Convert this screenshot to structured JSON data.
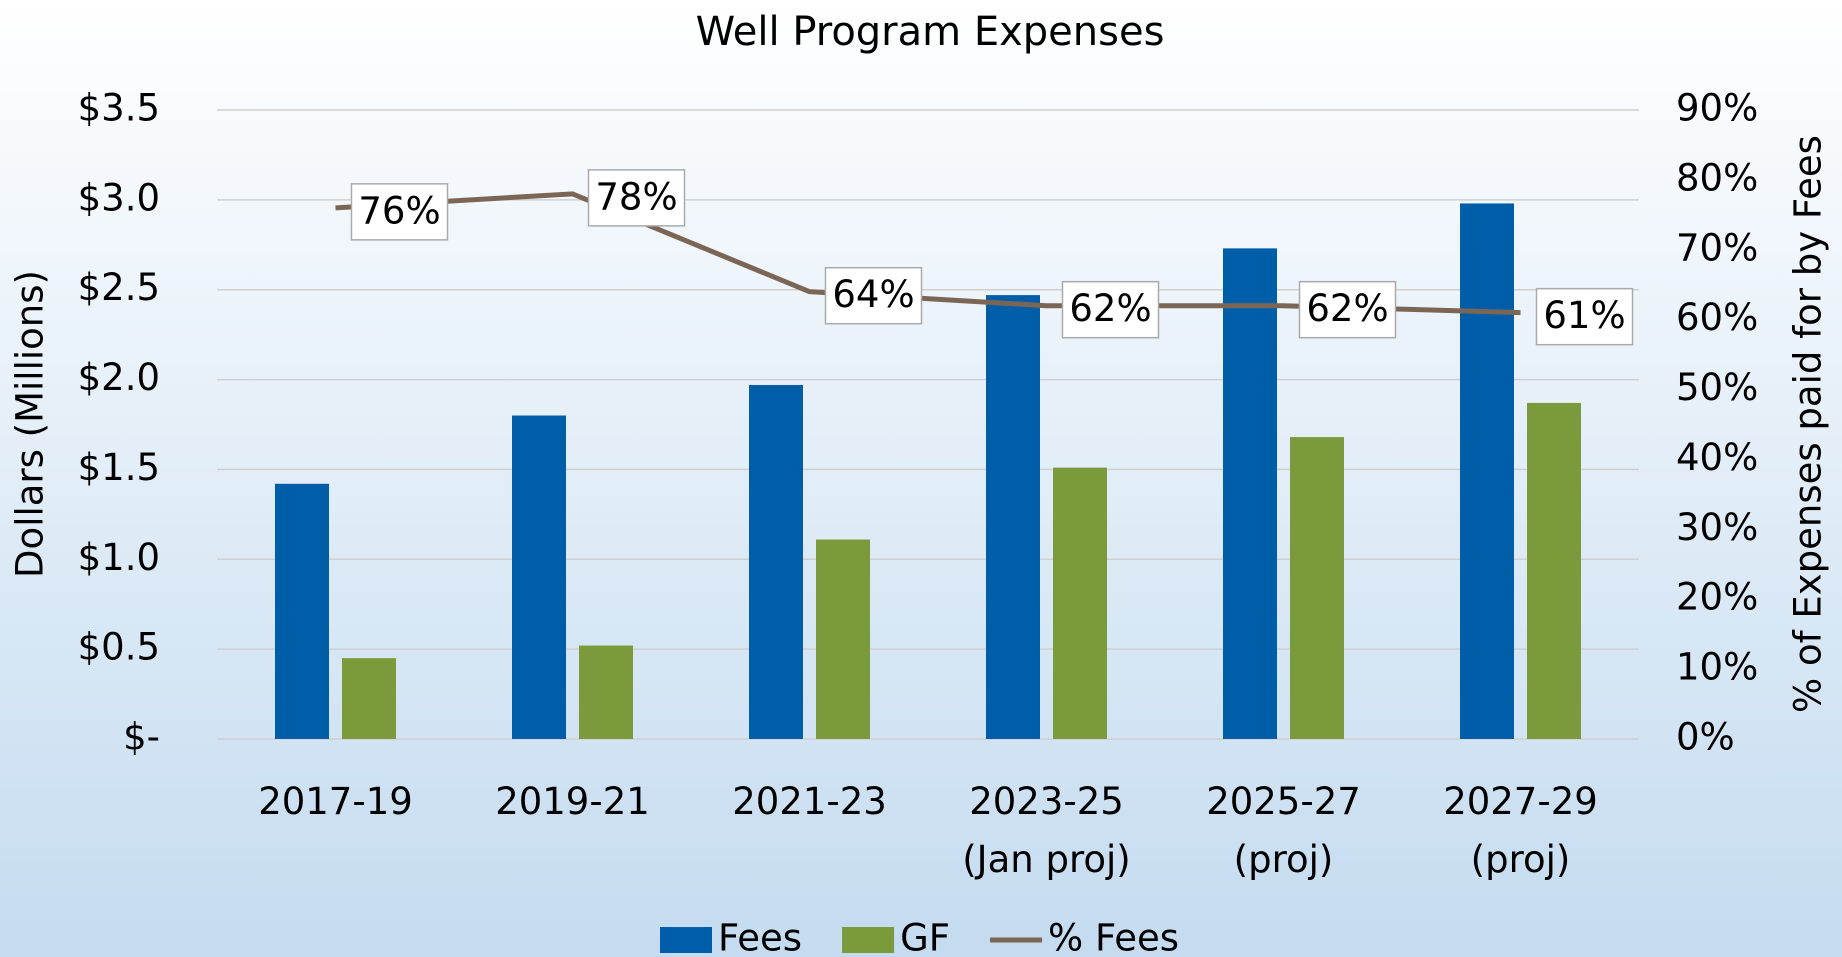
{
  "chart_data": {
    "type": "bar",
    "title": "Well Program Expenses",
    "y_label": "Dollars (Millions)",
    "y2_label": "% of Expenses paid for by Fees",
    "categories": [
      "2017-19",
      "2019-21",
      "2021-23",
      "2023-25\n(Jan proj)",
      "2025-27\n(proj)",
      "2027-29\n(proj)"
    ],
    "series": [
      {
        "name": "Fees",
        "type": "bar",
        "color": "#005ea8",
        "values": [
          1.42,
          1.8,
          1.97,
          2.47,
          2.73,
          2.98
        ]
      },
      {
        "name": "GF",
        "type": "bar",
        "color": "#7a9a3c",
        "values": [
          0.45,
          0.52,
          1.11,
          1.51,
          1.68,
          1.87
        ]
      },
      {
        "name": "% Fees",
        "type": "line",
        "axis": "y2",
        "color": "#7b6656",
        "values": [
          76,
          78,
          64,
          62,
          62,
          61
        ],
        "value_labels": [
          "76%",
          "78%",
          "64%",
          "62%",
          "62%",
          "61%"
        ]
      }
    ],
    "ylim": [
      0,
      3.5
    ],
    "yticks": [
      {
        "value": 0,
        "label": "$-"
      },
      {
        "value": 0.5,
        "label": "$0.5"
      },
      {
        "value": 1,
        "label": "$1.0"
      },
      {
        "value": 1.5,
        "label": "$1.5"
      },
      {
        "value": 2,
        "label": "$2.0"
      },
      {
        "value": 2.5,
        "label": "$2.5"
      },
      {
        "value": 3,
        "label": "$3.0"
      },
      {
        "value": 3.5,
        "label": "$3.5"
      }
    ],
    "y2lim": [
      0,
      90
    ],
    "y2ticks": [
      {
        "value": 0,
        "label": "0%"
      },
      {
        "value": 10,
        "label": "10%"
      },
      {
        "value": 20,
        "label": "20%"
      },
      {
        "value": 30,
        "label": "30%"
      },
      {
        "value": 40,
        "label": "40%"
      },
      {
        "value": 50,
        "label": "50%"
      },
      {
        "value": 60,
        "label": "60%"
      },
      {
        "value": 70,
        "label": "70%"
      },
      {
        "value": 80,
        "label": "80%"
      },
      {
        "value": 90,
        "label": "90%"
      }
    ],
    "grid": true,
    "legend": "bottom"
  }
}
